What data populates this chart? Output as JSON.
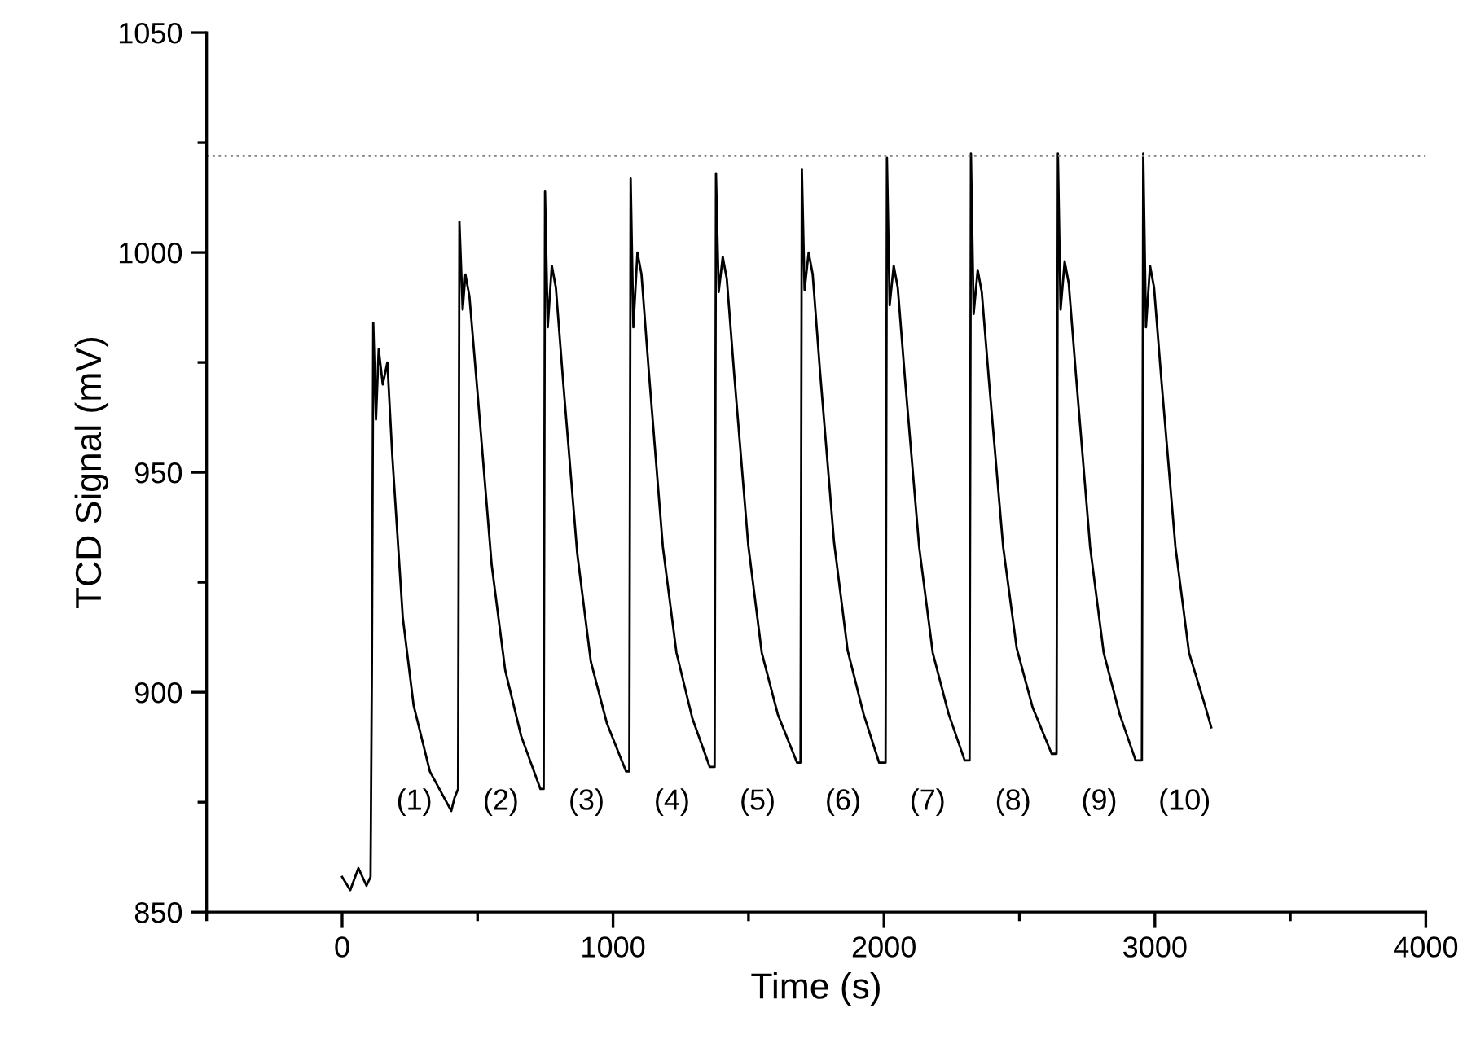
{
  "chart_data": {
    "type": "line",
    "xlabel": "Time (s)",
    "ylabel": "TCD Signal (mV)",
    "xlim": [
      -500,
      4000
    ],
    "ylim": [
      850,
      1050
    ],
    "xticks": [
      {
        "value": -500,
        "label": null
      },
      0,
      {
        "value": 500,
        "label": null
      },
      1000,
      {
        "value": 1500,
        "label": null
      },
      2000,
      {
        "value": 2500,
        "label": null
      },
      3000,
      {
        "value": 3500,
        "label": null
      },
      4000
    ],
    "yticks": [
      850,
      {
        "value": 875,
        "label": null
      },
      900,
      {
        "value": 925,
        "label": null
      },
      950,
      {
        "value": 975,
        "label": null
      },
      1000,
      {
        "value": 1025,
        "label": null
      },
      1050
    ],
    "grid": false,
    "legend": false,
    "marker": "none",
    "line_style": "solid",
    "series": [
      {
        "color": "#000000",
        "x": [
          0,
          30,
          60,
          90,
          105,
          110,
          115,
          125,
          135,
          150,
          167,
          185,
          224,
          264,
          324,
          403,
          415,
          428,
          433,
          445,
          455,
          470,
          500,
          552,
          602,
          661,
          732,
          744,
          749,
          759,
          774,
          789,
          816,
          868,
          918,
          977,
          1048,
          1060,
          1065,
          1075,
          1090,
          1105,
          1132,
          1184,
          1234,
          1293,
          1357,
          1375,
          1380,
          1390,
          1405,
          1420,
          1447,
          1499,
          1549,
          1608,
          1679,
          1692,
          1697,
          1707,
          1722,
          1737,
          1764,
          1816,
          1866,
          1925,
          1982,
          2006,
          2011,
          2021,
          2036,
          2051,
          2078,
          2130,
          2180,
          2239,
          2298,
          2316,
          2321,
          2331,
          2346,
          2361,
          2388,
          2440,
          2490,
          2549,
          2619,
          2637,
          2642,
          2652,
          2667,
          2682,
          2709,
          2761,
          2811,
          2870,
          2929,
          2952,
          2957,
          2967,
          2982,
          2997,
          3024,
          3076,
          3126,
          3185,
          3208
        ],
        "values": [
          858,
          855,
          860,
          856,
          858,
          905,
          984,
          962,
          978,
          970,
          975,
          954,
          917,
          897,
          882,
          873,
          876,
          878,
          1007,
          987,
          995,
          990,
          968,
          929,
          905,
          890,
          878,
          878,
          1014,
          983,
          997,
          992,
          970.5,
          931.5,
          907,
          893,
          882,
          882,
          1017,
          983,
          1000,
          995,
          973,
          933,
          909,
          894,
          883,
          883,
          1018,
          991,
          999,
          994,
          972.5,
          933.5,
          909,
          895,
          884,
          884,
          1019,
          991.5,
          1000,
          995,
          973,
          934,
          909.5,
          895,
          884,
          884,
          1021.5,
          988,
          997,
          992,
          971,
          933,
          909,
          895,
          884.5,
          884.5,
          1022.5,
          986,
          996,
          991,
          970.5,
          933,
          910,
          896.5,
          886,
          886,
          1022.5,
          987,
          998,
          993,
          972,
          933,
          909,
          895,
          884.5,
          884.5,
          1022.5,
          983,
          997,
          992,
          971,
          933,
          909,
          897,
          892
        ]
      }
    ],
    "ref_lines": [
      {
        "axis": "y",
        "value": 1022,
        "color": "#808080",
        "line_style": "dotted"
      }
    ],
    "annotations": [
      "(1)",
      "(2)",
      "(3)",
      "(4)",
      "(5)",
      "(6)",
      "(7)",
      "(8)",
      "(9)",
      "(10)"
    ]
  }
}
